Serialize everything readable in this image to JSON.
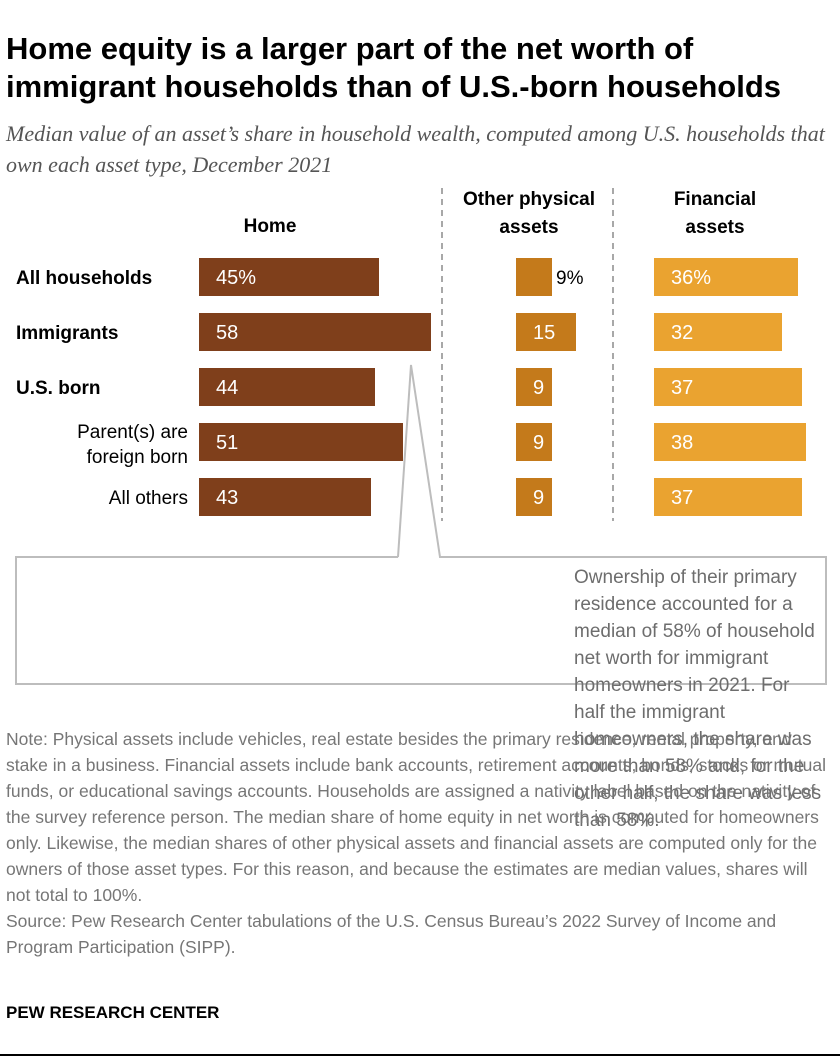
{
  "title": "Home equity is a larger part of the net worth of immigrant households than of U.S.-born households",
  "subtitle": "Median value of an asset’s share in household wealth, computed among U.S. households that own each asset type, December 2021",
  "chart_data": {
    "type": "bar",
    "orientation": "horizontal",
    "categories": [
      "All households",
      "Immigrants",
      "U.S. born",
      "Parent(s) are foreign born",
      "All others"
    ],
    "category_bold": [
      true,
      true,
      true,
      false,
      false
    ],
    "series": [
      {
        "name": "Home",
        "values": [
          45,
          58,
          44,
          51,
          43
        ],
        "labels": [
          "45%",
          "58",
          "44",
          "51",
          "43"
        ],
        "color": "#7f3f1b"
      },
      {
        "name": "Other physical assets",
        "values": [
          9,
          15,
          9,
          9,
          9
        ],
        "labels": [
          "9%",
          "15",
          "9",
          "9",
          "9"
        ],
        "color": "#c47a1b"
      },
      {
        "name": "Financial assets",
        "values": [
          36,
          32,
          37,
          38,
          37
        ],
        "labels": [
          "36%",
          "32",
          "37",
          "38",
          "37"
        ],
        "color": "#eaa330"
      }
    ],
    "callout": "Ownership of their primary residence accounted for a median of 58% of household net worth for immigrant homeowners in 2021. For half the immigrant homeowners, the share was more than 58% and, for the other half, the share was less than 58%.",
    "unit": "%"
  },
  "note": "Note: Physical assets include vehicles, real estate besides the primary residence, rental property, and stake in a business. Financial assets include bank accounts, retirement accounts, bonds, stocks or mutual funds, or educational savings accounts. Households are assigned a nativity label based on the nativity of the survey reference person. The median share of home equity in net worth is computed for homeowners only. Likewise, the median shares of other physical assets and financial assets are computed only for the owners of those asset types. For this reason, and because the estimates are median values, shares will not total to 100%.",
  "source": "Source: Pew Research Center tabulations of the U.S. Census Bureau’s 2022 Survey of Income and Program Participation (SIPP).",
  "brand": "PEW RESEARCH CENTER"
}
